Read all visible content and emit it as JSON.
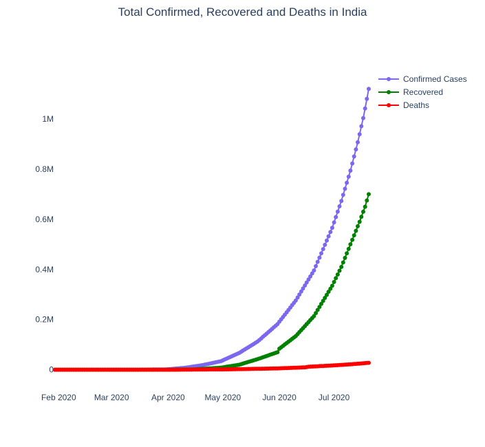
{
  "chart_data": {
    "type": "line",
    "title": "Total Confirmed, Recovered and Deaths in India",
    "xlabel": "",
    "ylabel": "",
    "x_ticks": [
      "Feb 2020",
      "Mar 2020",
      "Apr 2020",
      "May 2020",
      "Jun 2020",
      "Jul 2020"
    ],
    "y_ticks": [
      "0",
      "0.2M",
      "0.4M",
      "0.6M",
      "0.8M",
      "1M"
    ],
    "ylim": [
      -75000,
      1200000
    ],
    "x_range": [
      "2020-01-30",
      "2020-07-17"
    ],
    "grid": false,
    "legend_position": "top-right",
    "series": [
      {
        "name": "Confirmed Cases",
        "color": "#7b68ee",
        "points": [
          [
            "2020-01-30",
            0
          ],
          [
            "2020-03-01",
            3
          ],
          [
            "2020-03-15",
            110
          ],
          [
            "2020-03-31",
            1400
          ],
          [
            "2020-04-10",
            7600
          ],
          [
            "2020-04-20",
            18500
          ],
          [
            "2020-04-30",
            34000
          ],
          [
            "2020-05-10",
            67000
          ],
          [
            "2020-05-20",
            112000
          ],
          [
            "2020-05-31",
            182000
          ],
          [
            "2020-06-10",
            276000
          ],
          [
            "2020-06-20",
            396000
          ],
          [
            "2020-06-30",
            566000
          ],
          [
            "2020-07-05",
            673000
          ],
          [
            "2020-07-10",
            794000
          ],
          [
            "2020-07-14",
            907000
          ],
          [
            "2020-07-17",
            1003000
          ],
          [
            "2020-07-19",
            1080000
          ],
          [
            "2020-07-20",
            1120000
          ]
        ]
      },
      {
        "name": "Recovered",
        "color": "#008000",
        "points": [
          [
            "2020-01-30",
            0
          ],
          [
            "2020-04-01",
            150
          ],
          [
            "2020-04-15",
            1400
          ],
          [
            "2020-04-30",
            8300
          ],
          [
            "2020-05-10",
            20000
          ],
          [
            "2020-05-20",
            42000
          ],
          [
            "2020-05-31",
            70000
          ],
          [
            "2020-06-01",
            84000
          ],
          [
            "2020-06-10",
            134000
          ],
          [
            "2020-06-20",
            214000
          ],
          [
            "2020-06-30",
            335000
          ],
          [
            "2020-07-05",
            410000
          ],
          [
            "2020-07-10",
            500000
          ],
          [
            "2020-07-15",
            590000
          ],
          [
            "2020-07-18",
            650000
          ],
          [
            "2020-07-20",
            700000
          ]
        ]
      },
      {
        "name": "Deaths",
        "color": "#ff0000",
        "points": [
          [
            "2020-01-30",
            0
          ],
          [
            "2020-04-01",
            35
          ],
          [
            "2020-04-30",
            1100
          ],
          [
            "2020-05-31",
            5200
          ],
          [
            "2020-06-15",
            9500
          ],
          [
            "2020-06-17",
            12000
          ],
          [
            "2020-06-30",
            16900
          ],
          [
            "2020-07-10",
            21600
          ],
          [
            "2020-07-20",
            27500
          ]
        ]
      }
    ]
  }
}
